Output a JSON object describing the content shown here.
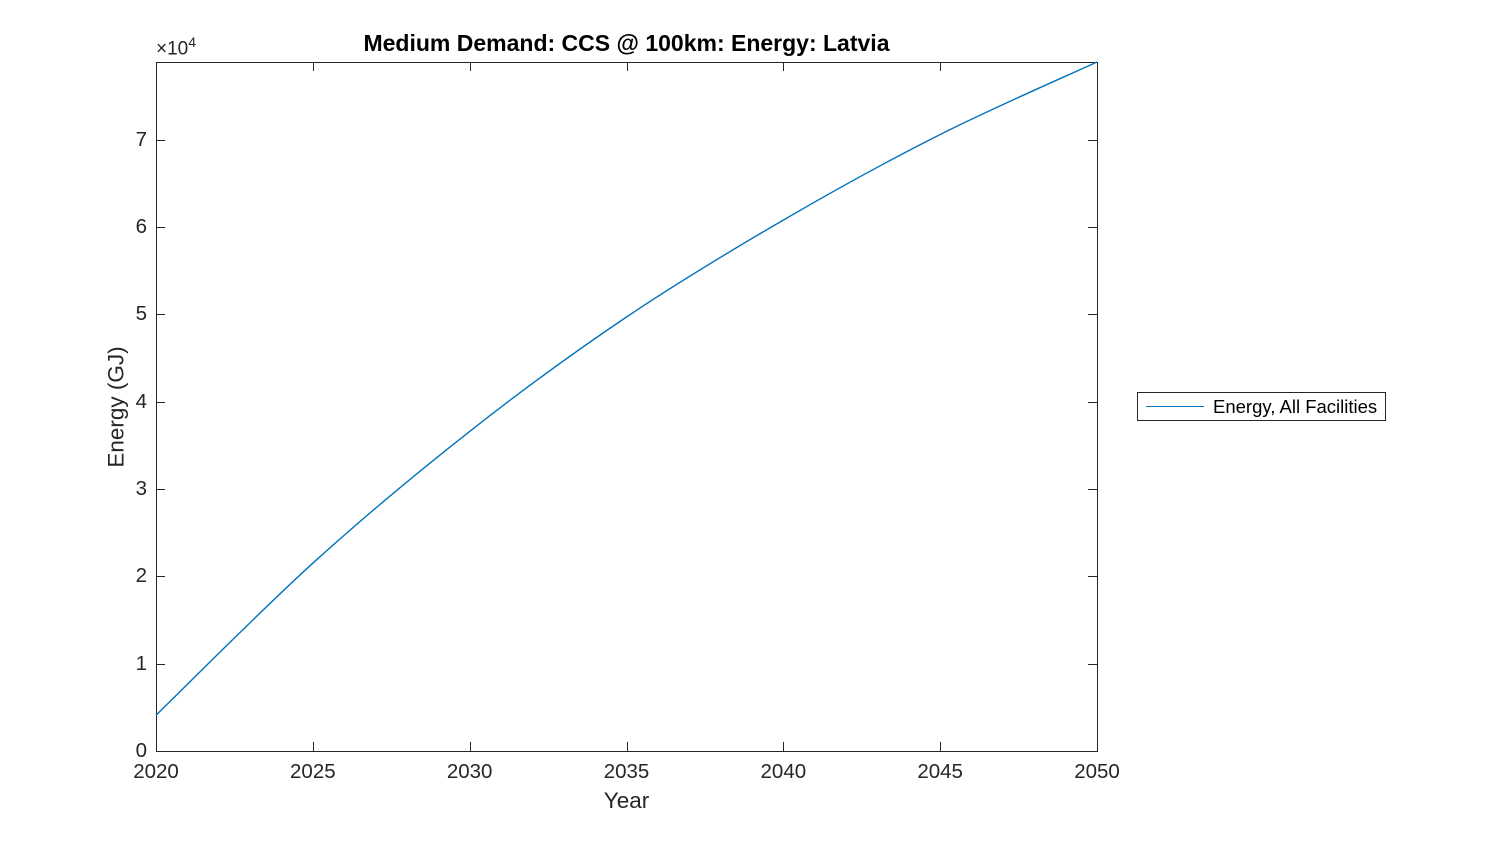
{
  "chart_data": {
    "type": "line",
    "title": "Medium Demand: CCS @ 100km: Energy: Latvia",
    "xlabel": "Year",
    "ylabel": "Energy (GJ)",
    "y_multiplier": {
      "base": "×10",
      "exponent": "4"
    },
    "x": [
      2020,
      2025,
      2030,
      2035,
      2040,
      2045,
      2050
    ],
    "series": [
      {
        "name": "Energy, All Facilities",
        "color": "#0072BD",
        "values_x10k": [
          0.41,
          2.15,
          3.66,
          4.97,
          6.08,
          7.06,
          7.89
        ],
        "values_gj": [
          4100,
          21500,
          36600,
          49700,
          60800,
          70600,
          78900
        ]
      }
    ],
    "xlim": [
      2020,
      2050
    ],
    "ylim_x10k": [
      0,
      7.89
    ],
    "xticks": [
      2020,
      2025,
      2030,
      2035,
      2040,
      2045,
      2050
    ],
    "yticks_x10k": [
      0,
      1,
      2,
      3,
      4,
      5,
      6,
      7
    ],
    "grid": false,
    "legend_position": "outside-right",
    "axis_color": "#262626",
    "background_color": "#ffffff"
  }
}
